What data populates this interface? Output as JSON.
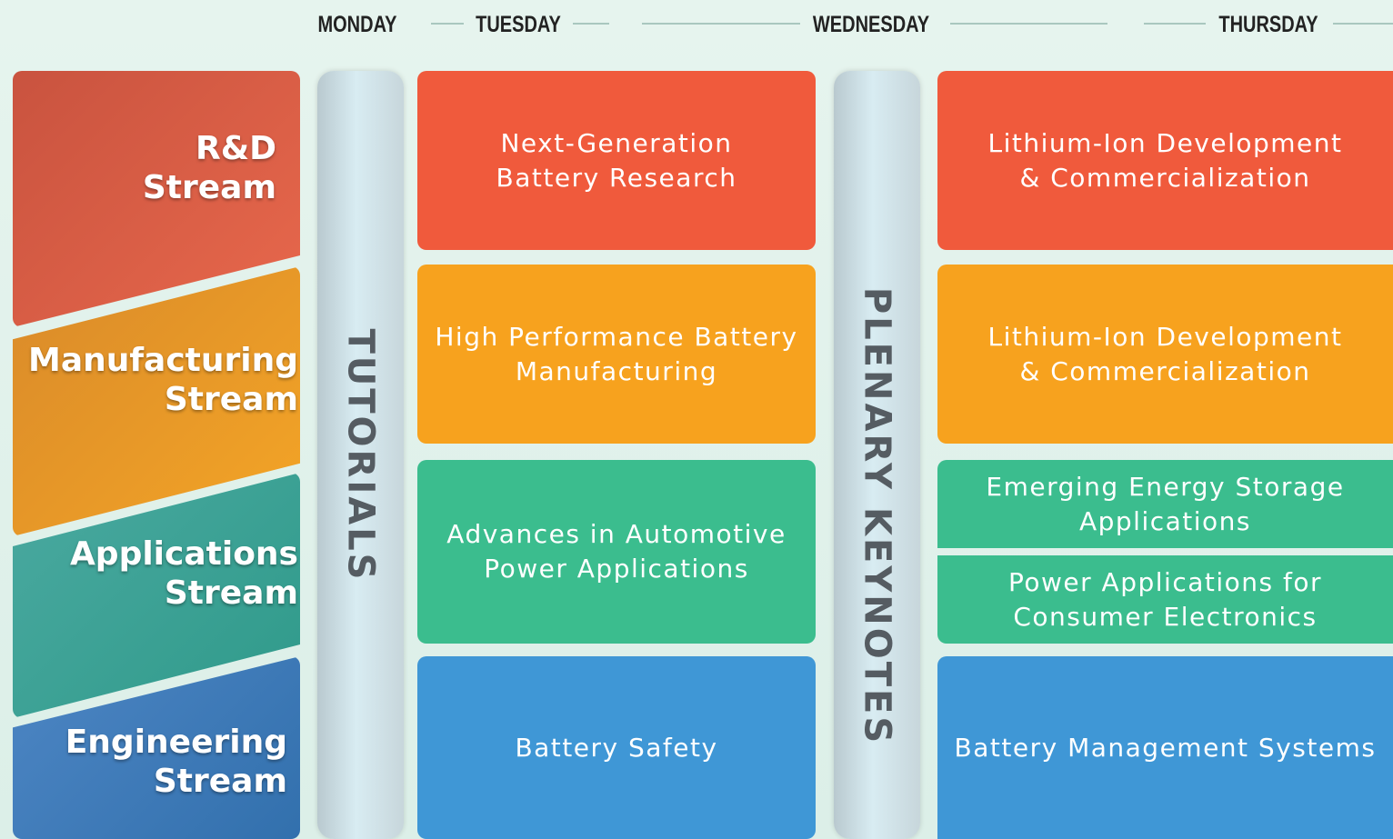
{
  "days": [
    "MONDAY",
    "TUESDAY",
    "WEDNESDAY",
    "THURSDAY"
  ],
  "streams": [
    {
      "lines": [
        "R&D",
        "Stream"
      ]
    },
    {
      "lines": [
        "Manufacturing",
        "Stream"
      ]
    },
    {
      "lines": [
        "Applications",
        "Stream"
      ]
    },
    {
      "lines": [
        "Engineering",
        "Stream"
      ]
    }
  ],
  "tutorials": "TUTORIALS",
  "plenary": "PLENARY KEYNOTES",
  "tuesday_sessions": [
    {
      "lines": [
        "Next-Generation",
        "Battery Research"
      ]
    },
    {
      "lines": [
        "High Performance Battery",
        "Manufacturing"
      ]
    },
    {
      "lines": [
        "Advances in Automotive",
        "Power Applications"
      ]
    },
    {
      "lines": [
        "Battery Safety"
      ]
    }
  ],
  "thursday_sessions": [
    {
      "lines": [
        "Lithium-Ion Development",
        "& Commercialization"
      ]
    },
    {
      "lines": [
        "Lithium-Ion Development",
        "& Commercialization"
      ]
    },
    {
      "lines": [
        "Emerging Energy Storage",
        "Applications"
      ]
    },
    {
      "lines": [
        "Power Applications for",
        "Consumer Electronics"
      ]
    },
    {
      "lines": [
        "Battery Management Systems"
      ]
    }
  ]
}
